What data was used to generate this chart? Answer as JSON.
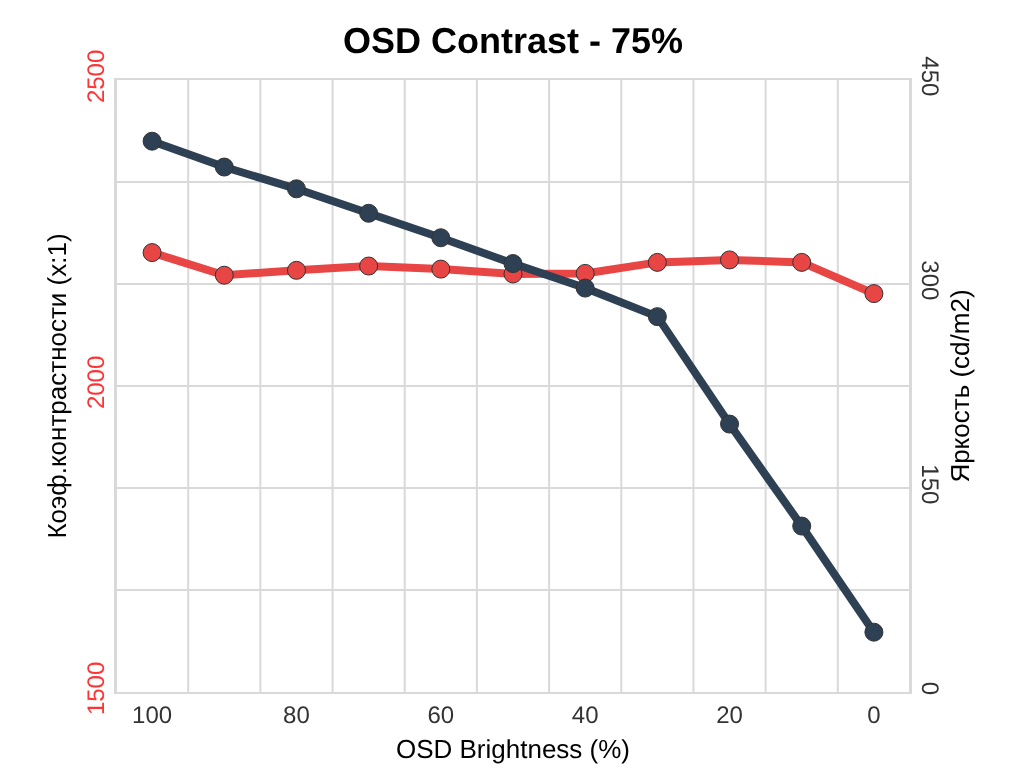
{
  "chart_data": {
    "type": "line",
    "title": "OSD Contrast - 75%",
    "xlabel": "OSD Brightness (%)",
    "ylabel": "Коэф.контрастности (x:1)",
    "y2label": "Яркость (cd/m2)",
    "x": [
      100,
      90,
      80,
      70,
      60,
      50,
      40,
      30,
      20,
      10,
      0
    ],
    "series": [
      {
        "color": "#e84545",
        "values": [
          2218,
          2181,
          2189,
          2196,
          2191,
          2183,
          2184,
          2202,
          2206,
          2202,
          2151
        ]
      },
      {
        "color": "#2e4053",
        "axis": "y2",
        "values": [
          405,
          386,
          370,
          352,
          334,
          315,
          297,
          276,
          197,
          122,
          44
        ]
      }
    ],
    "xlim": [
      105,
      -5
    ],
    "xticks": [
      {
        "value": 105,
        "label": null
      },
      100,
      {
        "value": 95,
        "label": null
      },
      {
        "value": 85,
        "label": null
      },
      80,
      {
        "value": 75,
        "label": null
      },
      {
        "value": 65,
        "label": null
      },
      60,
      {
        "value": 55,
        "label": null
      },
      {
        "value": 45,
        "label": null
      },
      40,
      {
        "value": 35,
        "label": null
      },
      {
        "value": 25,
        "label": null
      },
      20,
      {
        "value": 15,
        "label": null
      },
      {
        "value": 5,
        "label": null
      },
      0,
      {
        "value": -5,
        "label": null
      }
    ],
    "ylim": [
      1500,
      2500
    ],
    "yticks": [
      1500,
      2000,
      2500
    ],
    "y2lim": [
      0,
      450
    ],
    "y2ticks": [
      0,
      {
        "value": 75,
        "label": null
      },
      150,
      {
        "value": 225,
        "label": null
      },
      300,
      {
        "value": 375,
        "label": null
      },
      450
    ],
    "grid": true,
    "legend": false,
    "marker": "circle",
    "line_style": "solid"
  }
}
